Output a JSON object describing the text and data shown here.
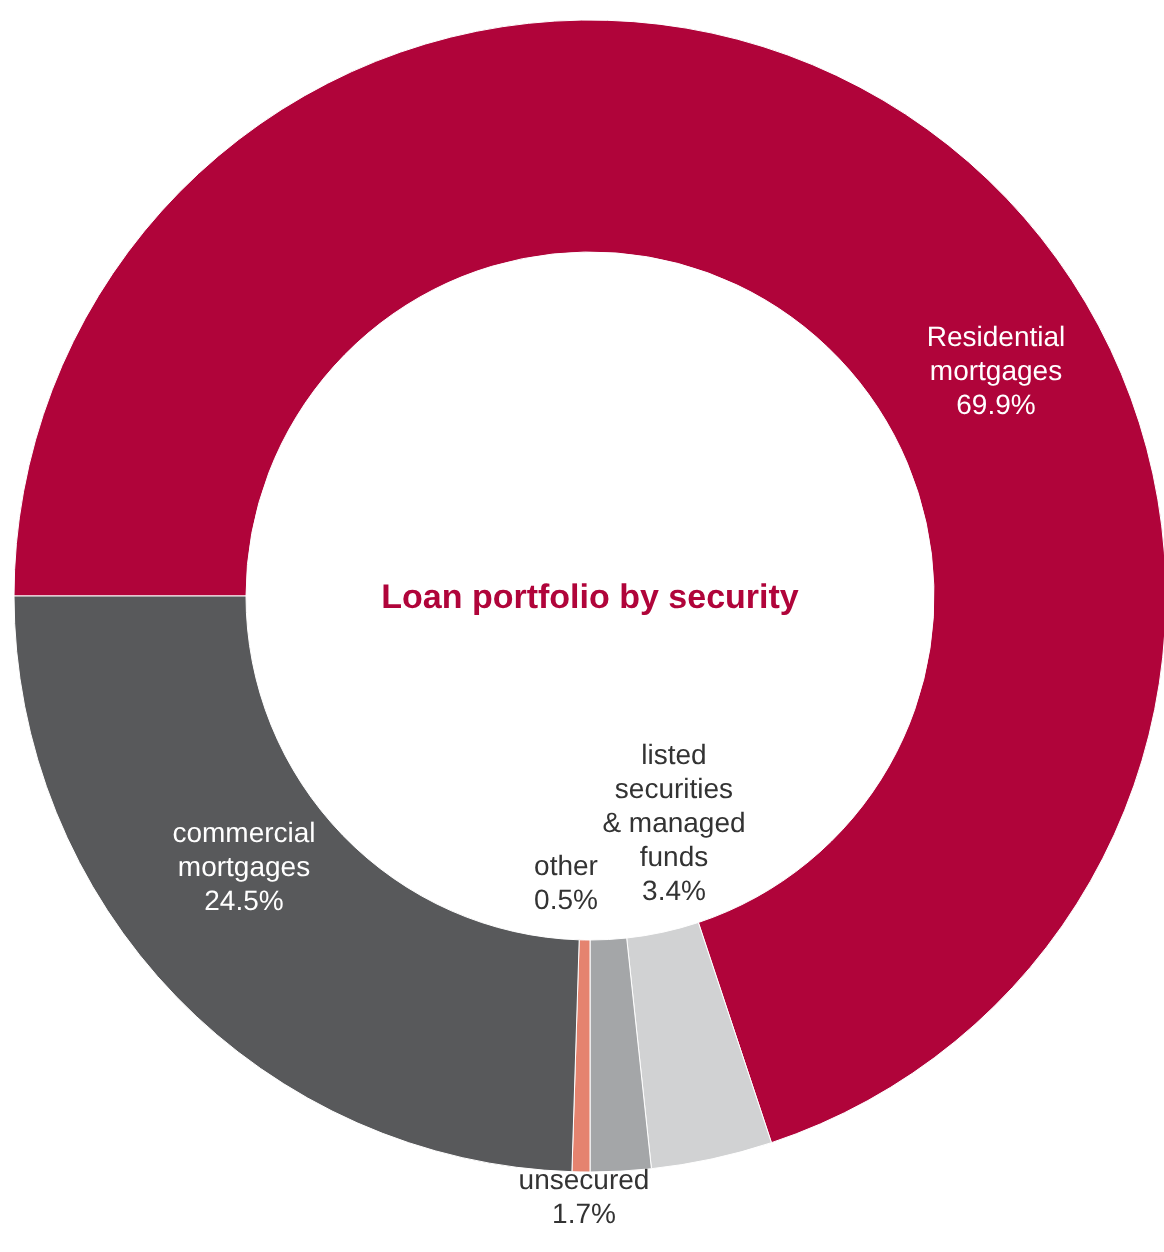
{
  "chart_data": {
    "type": "donut",
    "title": "Loan portfolio by security",
    "categories": [
      "Residential mortgages",
      "listed securities & managed funds",
      "unsecured",
      "other",
      "commercial mortgages"
    ],
    "values": [
      69.9,
      3.4,
      1.7,
      0.5,
      24.5
    ],
    "value_labels": [
      "69.9%",
      "3.4%",
      "1.7%",
      "0.5%",
      "24.5%"
    ],
    "colors": [
      "#b0043a",
      "#d1d2d3",
      "#a4a6a8",
      "#e5836f",
      "#58595b"
    ]
  }
}
